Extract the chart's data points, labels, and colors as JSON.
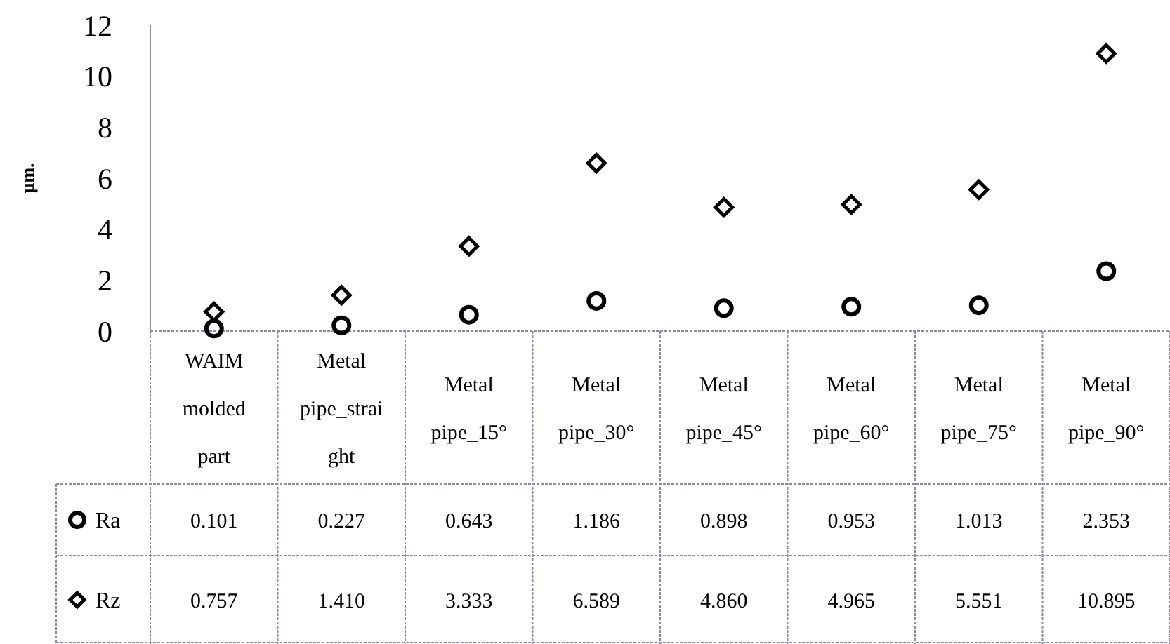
{
  "chart_data": {
    "type": "scatter",
    "ylabel": "µm.",
    "categories": [
      "WAIM molded part",
      "Metal pipe_straight",
      "Metal pipe_15°",
      "Metal pipe_30°",
      "Metal pipe_45°",
      "Metal pipe_60°",
      "Metal pipe_75°",
      "Metal pipe_90°"
    ],
    "series": [
      {
        "name": "Ra",
        "color": "#000000",
        "marker": "circle",
        "values": [
          0.101,
          0.227,
          0.643,
          1.186,
          0.898,
          0.953,
          1.013,
          2.353
        ],
        "value_labels": [
          "0.101",
          "0.227",
          "0.643",
          "1.186",
          "0.898",
          "0.953",
          "1.013",
          "2.353"
        ]
      },
      {
        "name": "Rz",
        "color": "#000000",
        "marker": "diamond",
        "values": [
          0.757,
          1.41,
          3.333,
          6.589,
          4.86,
          4.965,
          5.551,
          10.895
        ],
        "value_labels": [
          "0.757",
          "1.410",
          "3.333",
          "6.589",
          "4.860",
          "4.965",
          "5.551",
          "10.895"
        ]
      }
    ],
    "ylim": [
      0,
      12
    ],
    "yticks": [
      0,
      2,
      4,
      6,
      8,
      10,
      12
    ],
    "grid": false,
    "legend": "bottom left"
  }
}
